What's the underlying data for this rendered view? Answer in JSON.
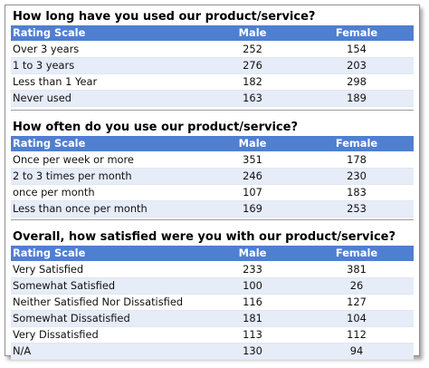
{
  "sections": [
    {
      "question": "How long have you used our product/service?",
      "headers": [
        "Rating Scale",
        "Male",
        "Female"
      ],
      "rows": [
        [
          "Over 3 years",
          "252",
          "154"
        ],
        [
          "1 to 3 years",
          "276",
          "203"
        ],
        [
          "Less than 1 Year",
          "182",
          "298"
        ],
        [
          "Never used",
          "163",
          "189"
        ]
      ]
    },
    {
      "question": "How often do you use our product/service?",
      "headers": [
        "Rating Scale",
        "Male",
        "Female"
      ],
      "rows": [
        [
          "Once per week or more",
          "351",
          "178"
        ],
        [
          "2 to 3 times per month",
          "246",
          "230"
        ],
        [
          "once per month",
          "107",
          "183"
        ],
        [
          "Less than once per month",
          "169",
          "253"
        ]
      ]
    },
    {
      "question": "Overall, how satisfied were you with our product/service?",
      "headers": [
        "Rating Scale",
        "Male",
        "Female"
      ],
      "rows": [
        [
          "Very Satisfied",
          "233",
          "381"
        ],
        [
          "Somewhat Satisfied",
          "100",
          "26"
        ],
        [
          "Neither Satisfied Nor Dissatisfied",
          "116",
          "127"
        ],
        [
          "Somewhat Dissatisfied",
          "181",
          "104"
        ],
        [
          "Very Dissatisfied",
          "113",
          "112"
        ],
        [
          "N/A",
          "130",
          "94"
        ]
      ]
    }
  ]
}
